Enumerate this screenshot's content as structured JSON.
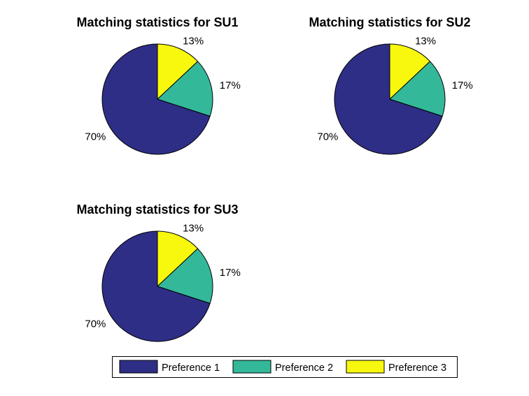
{
  "colors": {
    "preference_1": "#2e2e87",
    "preference_2": "#33b99a",
    "preference_3": "#f8f80e",
    "edge": "#000000",
    "background": "#ffffff"
  },
  "chart_data": [
    {
      "type": "pie",
      "title": "Matching statistics for SU1",
      "categories": [
        "Preference 1",
        "Preference 2",
        "Preference 3"
      ],
      "values": [
        70,
        17,
        13
      ],
      "labels": [
        "70%",
        "17%",
        "13%"
      ]
    },
    {
      "type": "pie",
      "title": "Matching statistics for SU2",
      "categories": [
        "Preference 1",
        "Preference 2",
        "Preference 3"
      ],
      "values": [
        70,
        17,
        13
      ],
      "labels": [
        "70%",
        "17%",
        "13%"
      ]
    },
    {
      "type": "pie",
      "title": "Matching statistics for SU3",
      "categories": [
        "Preference 1",
        "Preference 2",
        "Preference 3"
      ],
      "values": [
        70,
        17,
        13
      ],
      "labels": [
        "70%",
        "17%",
        "13%"
      ]
    }
  ],
  "legend": {
    "placement": "bottom",
    "entries": [
      "Preference 1",
      "Preference 2",
      "Preference 3"
    ]
  }
}
